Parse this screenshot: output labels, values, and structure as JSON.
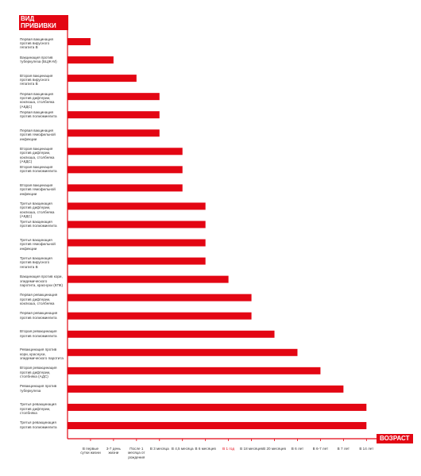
{
  "chart_data": {
    "type": "bar",
    "orientation": "horizontal",
    "y_title": "ВИД ПРИВИВКИ",
    "x_title": "ВОЗРАСТ",
    "categories": [
      "Первая вакцинация против вирусного гепатита В",
      "Вакцинация против туберкулеза (БЦЖ-М)",
      "Вторая вакцинация против вирусного гепатита В",
      "Первая вакцинация против дифтерии, коклюша, столбняка (АКДС)",
      "Первая вакцинация против полиомиелита",
      "Первая вакцинация против гемофильной инфекции",
      "Вторая вакцинация против дифтерии, коклюша, столбняка (АКДС)",
      "Вторая вакцинация против полиомиелита",
      "Вторая вакцинация против гемофильной инфекции",
      "Третья вакцинация против дифтерии, коклюша, столбняка (АКДС)",
      "Третья вакцинация против полиомиелита",
      "Третья вакцинация против гемофильной инфекции",
      "Третья вакцинация против вирусного гепатита В",
      "Вакцинация против кори, эпидемического паротита, краснухи (КПК)",
      "Первая ревакцинация против дифтерии, коклюша, столбняка",
      "Первая ревакцинация против полиомиелита",
      "Вторая ревакцинация против полиомиелита",
      "Ревакцинация против кори, краснухи, эпидемического паротита",
      "Вторая ревакцинация против дифтерии, столбняка (АДС)",
      "Ревакцинация против туберкулеза",
      "Третья ревакцинация против дифтерии, столбняка",
      "Третья ревакцинация против полиомиелита"
    ],
    "values": [
      1,
      2,
      3,
      4,
      4,
      4,
      5,
      5,
      5,
      6,
      6,
      6,
      6,
      7,
      8,
      8,
      9,
      10,
      11,
      12,
      13,
      13
    ],
    "color": "#e30613",
    "xlim": [
      0,
      13.3
    ],
    "xticks": [
      {
        "value": 1,
        "label": "В первые сутки жизни"
      },
      {
        "value": 2,
        "label": "3-7 день жизни"
      },
      {
        "value": 3,
        "label": "После 1 месяца от рождения"
      },
      {
        "value": 4,
        "label": "В 3 месяца"
      },
      {
        "value": 5,
        "label": "В 4,5 месяца"
      },
      {
        "value": 6,
        "label": "В 6 месяцев"
      },
      {
        "value": 7,
        "label": "В 1 год",
        "color": "#e30613"
      },
      {
        "value": 8,
        "label": "В 18 месяцев"
      },
      {
        "value": 9,
        "label": "В 20 месяцев"
      },
      {
        "value": 10,
        "label": "В 6 лет"
      },
      {
        "value": 11,
        "label": "В 6-7 лет"
      },
      {
        "value": 12,
        "label": "В 7 лет"
      },
      {
        "value": 13,
        "label": "В 14 лет"
      }
    ],
    "grid": false
  }
}
